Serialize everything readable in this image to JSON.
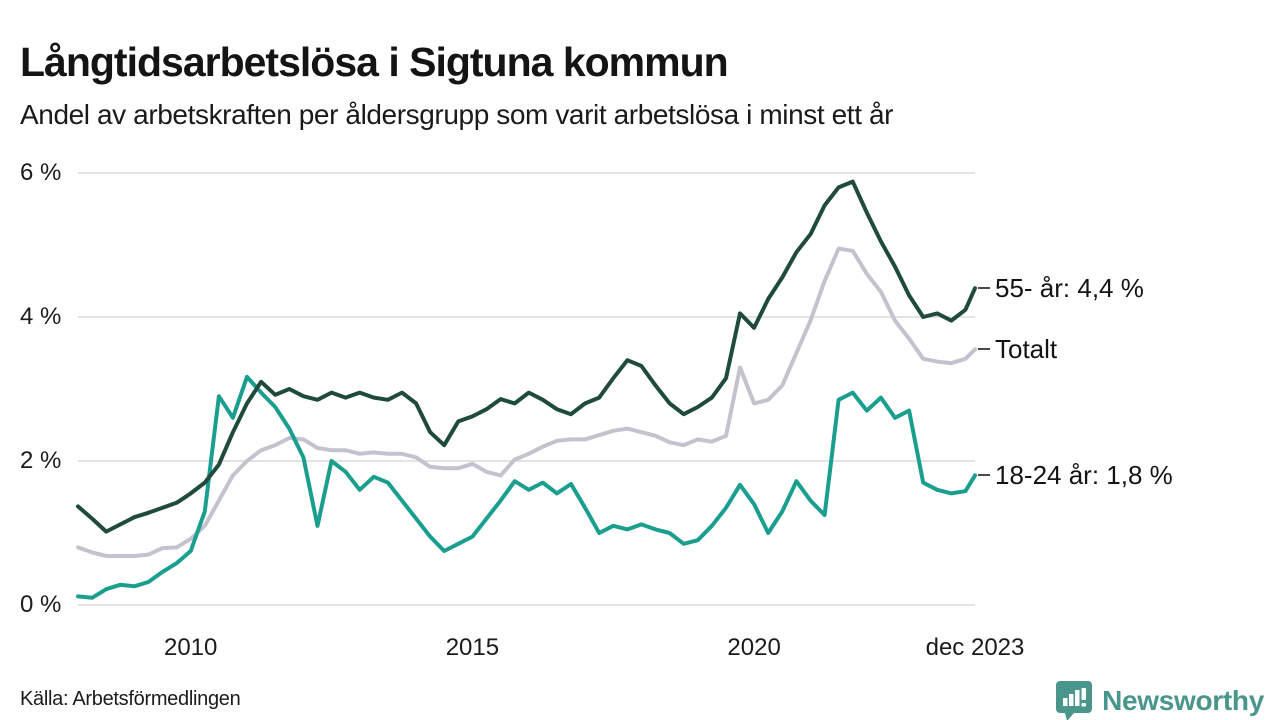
{
  "header": {
    "title": "Långtidsarbetslösa i Sigtuna kommun",
    "subtitle": "Andel av arbetskraften per åldersgrupp som varit arbetslösa i minst ett år"
  },
  "footer": {
    "source": "Källa: Arbetsförmedlingen",
    "brand_name": "Newsworthy",
    "brand_icon": "newsworthy-pin-barchart-icon"
  },
  "colors": {
    "series_55": "#1f4a3c",
    "series_total": "#c4c2ce",
    "series_18_24": "#1a9e8e",
    "grid": "#e3e3e3",
    "text": "#141414",
    "brand": "#4a958c"
  },
  "chart_data": {
    "type": "line",
    "title": "Långtidsarbetslösa i Sigtuna kommun",
    "subtitle": "Andel av arbetskraften per åldersgrupp som varit arbetslösa i minst ett år",
    "unit": "% av arbetskraften",
    "grid": true,
    "xlim": [
      2008.0,
      2023.92
    ],
    "ylim": [
      0,
      6
    ],
    "x_start": 2008.0,
    "x_step": 0.25,
    "x_last": 2023.92,
    "xticks": [
      {
        "value": 2010,
        "label": "2010"
      },
      {
        "value": 2015,
        "label": "2015"
      },
      {
        "value": 2020,
        "label": "2020"
      },
      {
        "value": 2023.92,
        "label": "dec 2023"
      }
    ],
    "yticks": [
      {
        "value": 0,
        "label": "0 %"
      },
      {
        "value": 2,
        "label": "2 %"
      },
      {
        "value": 4,
        "label": "4 %"
      },
      {
        "value": 6,
        "label": "6 %"
      }
    ],
    "series": [
      {
        "name": "55- år",
        "label": "55- år: 4,4 %",
        "last_value_text": "4,4 %",
        "color": "#1f4a3c",
        "draw_order": 3,
        "values": [
          1.37,
          1.2,
          1.02,
          1.12,
          1.22,
          1.28,
          1.35,
          1.42,
          1.55,
          1.7,
          1.95,
          2.4,
          2.8,
          3.1,
          2.92,
          3.0,
          2.9,
          2.85,
          2.95,
          2.88,
          2.95,
          2.88,
          2.85,
          2.95,
          2.8,
          2.4,
          2.22,
          2.55,
          2.62,
          2.72,
          2.86,
          2.8,
          2.95,
          2.85,
          2.72,
          2.65,
          2.8,
          2.88,
          3.15,
          3.4,
          3.32,
          3.05,
          2.8,
          2.65,
          2.75,
          2.88,
          3.15,
          4.05,
          3.85,
          4.25,
          4.55,
          4.9,
          5.15,
          5.55,
          5.8,
          5.88,
          5.45,
          5.05,
          4.7,
          4.3,
          4.0,
          4.05,
          3.95,
          4.1,
          4.4
        ]
      },
      {
        "name": "Totalt",
        "label": "Totalt",
        "last_value_text": "3,5 %",
        "color": "#c4c2ce",
        "draw_order": 1,
        "values": [
          0.8,
          0.73,
          0.68,
          0.68,
          0.68,
          0.7,
          0.79,
          0.8,
          0.92,
          1.1,
          1.45,
          1.8,
          2.0,
          2.15,
          2.22,
          2.32,
          2.3,
          2.18,
          2.15,
          2.15,
          2.1,
          2.12,
          2.1,
          2.1,
          2.05,
          1.92,
          1.9,
          1.9,
          1.96,
          1.85,
          1.8,
          2.02,
          2.1,
          2.2,
          2.28,
          2.3,
          2.3,
          2.36,
          2.42,
          2.45,
          2.4,
          2.35,
          2.26,
          2.22,
          2.3,
          2.27,
          2.35,
          3.3,
          2.8,
          2.85,
          3.05,
          3.5,
          3.95,
          4.5,
          4.95,
          4.92,
          4.6,
          4.35,
          3.95,
          3.7,
          3.42,
          3.38,
          3.36,
          3.42,
          3.55
        ]
      },
      {
        "name": "18-24 år",
        "label": "18-24 år: 1,8 %",
        "last_value_text": "1,8 %",
        "color": "#1a9e8e",
        "draw_order": 2,
        "values": [
          0.12,
          0.1,
          0.22,
          0.28,
          0.26,
          0.32,
          0.46,
          0.58,
          0.75,
          1.3,
          2.9,
          2.6,
          3.17,
          2.95,
          2.75,
          2.45,
          2.05,
          1.1,
          2.0,
          1.85,
          1.6,
          1.78,
          1.7,
          1.45,
          1.2,
          0.95,
          0.75,
          0.85,
          0.95,
          1.2,
          1.45,
          1.72,
          1.6,
          1.7,
          1.55,
          1.68,
          1.35,
          1.0,
          1.1,
          1.05,
          1.12,
          1.05,
          1.0,
          0.85,
          0.9,
          1.1,
          1.35,
          1.67,
          1.4,
          1.0,
          1.3,
          1.72,
          1.45,
          1.25,
          2.85,
          2.95,
          2.7,
          2.88,
          2.6,
          2.7,
          1.7,
          1.6,
          1.55,
          1.58,
          1.8
        ]
      }
    ]
  }
}
